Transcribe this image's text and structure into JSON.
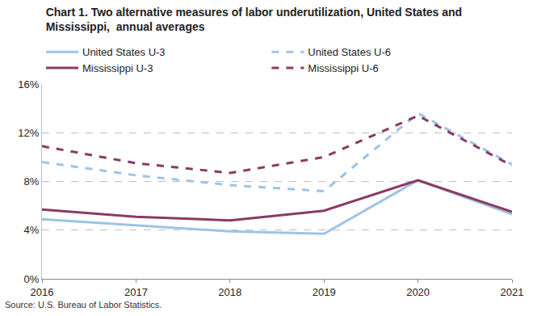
{
  "chart_data": {
    "type": "line",
    "title": "Chart 1. Two alternative measures of labor underutilization, United States and Mississippi,  annual averages",
    "source": "Source: U.S. Bureau of Labor Statistics.",
    "x": [
      2016,
      2017,
      2018,
      2019,
      2020,
      2021
    ],
    "xlim": [
      2016,
      2021
    ],
    "xticks": [
      2016,
      2017,
      2018,
      2019,
      2020,
      2021
    ],
    "ylim": [
      0,
      16
    ],
    "yticks": [
      {
        "value": 0,
        "label": "0%"
      },
      {
        "value": 4,
        "label": "4%"
      },
      {
        "value": 8,
        "label": "8%"
      },
      {
        "value": 12,
        "label": "12%"
      },
      {
        "value": 16,
        "label": "16%"
      }
    ],
    "grid": true,
    "legend": "top",
    "series": [
      {
        "name": "United States U-3",
        "color": "#9dc3e6",
        "line_style": "solid",
        "values": [
          4.9,
          4.4,
          3.9,
          3.7,
          8.1,
          5.3
        ]
      },
      {
        "name": "United States U-6",
        "color": "#9dc3e6",
        "line_style": "dash",
        "values": [
          9.6,
          8.5,
          7.7,
          7.2,
          13.6,
          9.4
        ]
      },
      {
        "name": "Mississippi U-3",
        "color": "#8b3a62",
        "line_style": "solid",
        "values": [
          5.7,
          5.1,
          4.8,
          5.6,
          8.1,
          5.5
        ]
      },
      {
        "name": "Mississippi U-6",
        "color": "#8b3a62",
        "line_style": "dash",
        "values": [
          10.9,
          9.5,
          8.7,
          10.0,
          13.4,
          9.3
        ]
      }
    ]
  }
}
